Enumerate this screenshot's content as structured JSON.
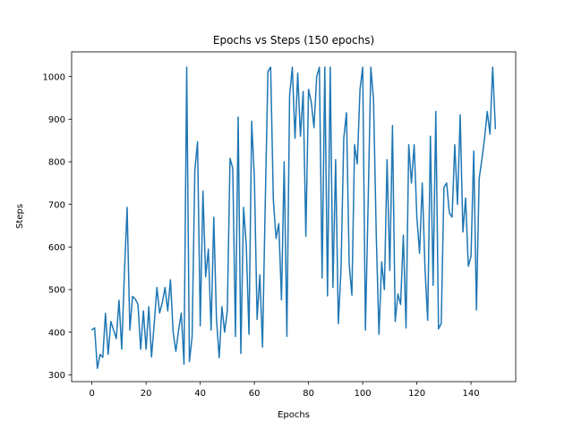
{
  "chart_data": {
    "type": "line",
    "title": "Epochs vs Steps    (150 epochs)",
    "xlabel": "Epochs",
    "ylabel": "Steps",
    "xlim": [
      -7.5,
      156.5
    ],
    "ylim": [
      284,
      1058
    ],
    "xticks": [
      0,
      20,
      40,
      60,
      80,
      100,
      120,
      140
    ],
    "yticks": [
      300,
      400,
      500,
      600,
      700,
      800,
      900,
      1000
    ],
    "grid": false,
    "legend": "none",
    "series": [
      {
        "color": "#1f77b4",
        "x": [
          0,
          1,
          2,
          3,
          4,
          5,
          6,
          7,
          8,
          9,
          10,
          11,
          12,
          13,
          14,
          15,
          16,
          17,
          18,
          19,
          20,
          21,
          22,
          23,
          24,
          25,
          26,
          27,
          28,
          29,
          30,
          31,
          32,
          33,
          34,
          35,
          36,
          37,
          38,
          39,
          40,
          41,
          42,
          43,
          44,
          45,
          46,
          47,
          48,
          49,
          50,
          51,
          52,
          53,
          54,
          55,
          56,
          57,
          58,
          59,
          60,
          61,
          62,
          63,
          64,
          65,
          66,
          67,
          68,
          69,
          70,
          71,
          72,
          73,
          74,
          75,
          76,
          77,
          78,
          79,
          80,
          81,
          82,
          83,
          84,
          85,
          86,
          87,
          88,
          89,
          90,
          91,
          92,
          93,
          94,
          95,
          96,
          97,
          98,
          99,
          100,
          101,
          102,
          103,
          104,
          105,
          106,
          107,
          108,
          109,
          110,
          111,
          112,
          113,
          114,
          115,
          116,
          117,
          118,
          119,
          120,
          121,
          122,
          123,
          124,
          125,
          126,
          127,
          128,
          129,
          130,
          131,
          132,
          133,
          134,
          135,
          136,
          137,
          138,
          139,
          140,
          141,
          142,
          143,
          144,
          145,
          146,
          147,
          148,
          149
        ],
        "values": [
          406,
          410,
          315,
          348,
          341,
          444,
          348,
          425,
          405,
          385,
          475,
          360,
          540,
          693,
          405,
          484,
          478,
          465,
          360,
          450,
          360,
          460,
          342,
          420,
          505,
          445,
          470,
          505,
          450,
          523,
          400,
          355,
          405,
          445,
          325,
          1022,
          331,
          390,
          780,
          847,
          415,
          731,
          530,
          595,
          405,
          670,
          430,
          340,
          460,
          400,
          450,
          808,
          785,
          390,
          905,
          350,
          693,
          605,
          395,
          895,
          760,
          430,
          535,
          365,
          700,
          1012,
          1022,
          710,
          620,
          655,
          476,
          800,
          390,
          955,
          1022,
          855,
          1008,
          860,
          965,
          625,
          970,
          940,
          880,
          1000,
          1022,
          527,
          1022,
          485,
          1022,
          505,
          805,
          420,
          550,
          855,
          915,
          560,
          487,
          840,
          795,
          970,
          1022,
          405,
          700,
          1022,
          945,
          630,
          395,
          565,
          500,
          805,
          545,
          885,
          425,
          490,
          465,
          628,
          410,
          840,
          750,
          840,
          670,
          585,
          750,
          550,
          428,
          860,
          510,
          918,
          408,
          420,
          740,
          750,
          680,
          670,
          840,
          700,
          910,
          635,
          715,
          555,
          578,
          825,
          452,
          760,
          805,
          855,
          918,
          865,
          1022,
          878
        ]
      }
    ]
  }
}
